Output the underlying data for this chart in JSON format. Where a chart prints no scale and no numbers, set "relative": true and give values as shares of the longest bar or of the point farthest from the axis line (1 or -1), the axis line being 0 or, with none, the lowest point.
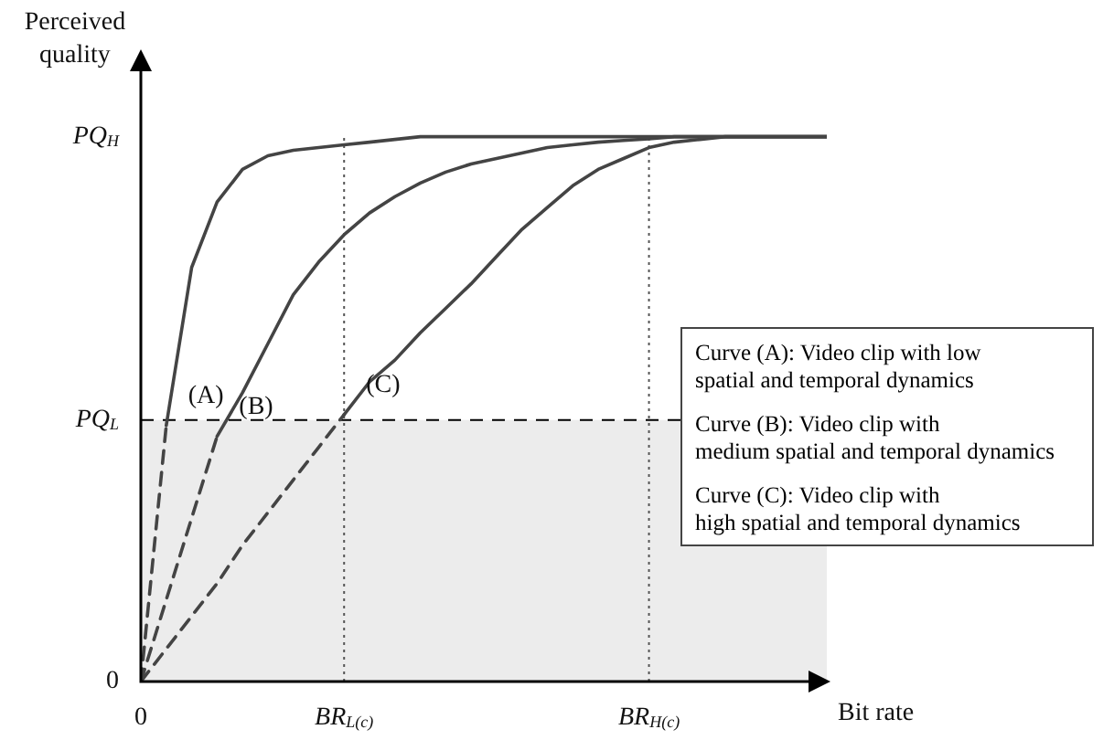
{
  "chart_data": {
    "type": "line",
    "xlabel": "Bit rate",
    "ylabel": "Perceived quality",
    "marker": "none",
    "relative": true,
    "grid": "x",
    "categories": [
      "0",
      null,
      null,
      null,
      null,
      null,
      null,
      null,
      "BR$_{L(c)}$",
      null,
      null,
      null,
      null,
      null,
      null,
      null,
      null,
      null,
      null,
      null,
      "BR$_{H(c)}$",
      null,
      null,
      null,
      null,
      null,
      null,
      null
    ],
    "series": [
      {
        "name": "(A)",
        "color": "#444444",
        "line_style": "solid",
        "values": [
          null,
          0.47,
          0.76,
          0.88,
          0.94,
          0.965,
          0.975,
          0.98,
          0.985,
          0.99,
          0.995,
          1.0,
          1.0,
          1.0,
          1.0,
          1.0,
          1.0,
          1.0,
          1.0,
          1.0,
          1.0,
          1.0,
          1.0,
          1.0,
          1.0,
          1.0,
          1.0,
          1.0
        ]
      },
      {
        "name": "(B)",
        "color": "#444444",
        "line_style": "solid",
        "values": [
          null,
          null,
          null,
          0.45,
          0.53,
          0.62,
          0.71,
          0.77,
          0.82,
          0.86,
          0.89,
          0.915,
          0.935,
          0.95,
          0.96,
          0.97,
          0.98,
          0.985,
          0.99,
          0.993,
          0.996,
          1.0,
          1.0,
          1.0,
          1.0,
          1.0,
          1.0,
          1.0
        ]
      },
      {
        "name": "(C)",
        "color": "#444444",
        "line_style": "solid",
        "values": [
          null,
          null,
          null,
          null,
          null,
          null,
          null,
          null,
          0.49,
          0.55,
          0.59,
          0.64,
          0.685,
          0.73,
          0.78,
          0.83,
          0.87,
          0.91,
          0.94,
          0.96,
          0.98,
          0.99,
          0.995,
          1.0,
          1.0,
          1.0,
          1.0,
          1.0
        ]
      },
      {
        "color": "#444444",
        "line_style": "dashed",
        "values": [
          0,
          0.47,
          null,
          null,
          null,
          null,
          null,
          null,
          null,
          null,
          null,
          null,
          null,
          null,
          null,
          null,
          null,
          null,
          null,
          null,
          null,
          null,
          null,
          null,
          null,
          null,
          null,
          null
        ]
      },
      {
        "color": "#444444",
        "line_style": "dashed",
        "values": [
          0,
          0.15,
          0.3,
          0.45,
          null,
          null,
          null,
          null,
          null,
          null,
          null,
          null,
          null,
          null,
          null,
          null,
          null,
          null,
          null,
          null,
          null,
          null,
          null,
          null,
          null,
          null,
          null,
          null
        ]
      },
      {
        "color": "#444444",
        "line_style": "dashed",
        "values": [
          0,
          0.06,
          0.12,
          0.18,
          0.25,
          0.31,
          0.37,
          0.43,
          0.49,
          null,
          null,
          null,
          null,
          null,
          null,
          null,
          null,
          null,
          null,
          null,
          null,
          null,
          null,
          null,
          null,
          null,
          null,
          null
        ]
      }
    ],
    "ref_lines": [
      {
        "axis": "y",
        "value": 0.48,
        "label": "PQ$_{L}$",
        "line_style": "dashed",
        "color": "#000000"
      }
    ],
    "bands": [
      {
        "axis": "y",
        "from": 0,
        "to": 0.48,
        "color": "#ececec"
      }
    ],
    "annotations": [
      "PQ$_{H}$",
      "0",
      "Curve (A): Video clip with low\nspatial and temporal dynamics",
      "Curve (B): Video clip with\nmedium spatial and temporal dynamics",
      "Curve (C): Video clip with\nhigh spatial and temporal dynamics"
    ]
  }
}
